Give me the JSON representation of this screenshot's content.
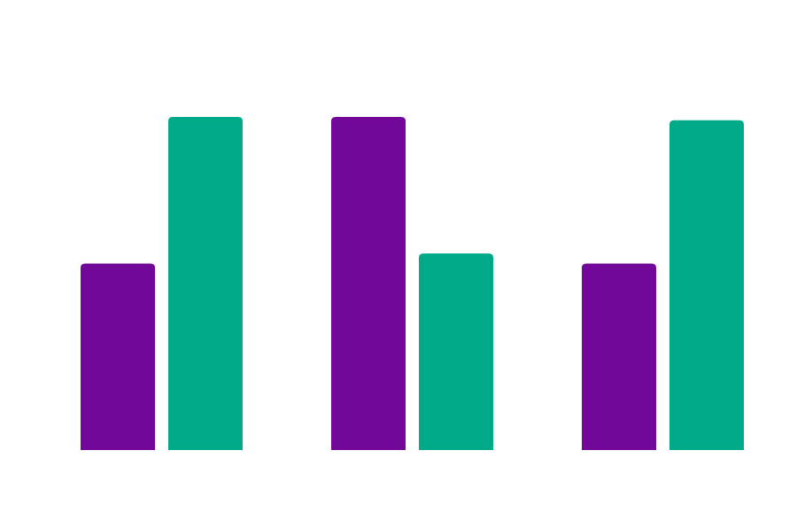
{
  "chart_data": {
    "type": "bar",
    "title": "",
    "xlabel": "",
    "ylabel": "",
    "categories": [
      "",
      "",
      ""
    ],
    "series": [
      {
        "color": "#720899",
        "values": [
          56,
          100,
          56
        ]
      },
      {
        "color": "#00aa88",
        "values": [
          100,
          59,
          99
        ]
      }
    ],
    "ylim": [
      0,
      100
    ],
    "grid": false,
    "legend": "none"
  }
}
